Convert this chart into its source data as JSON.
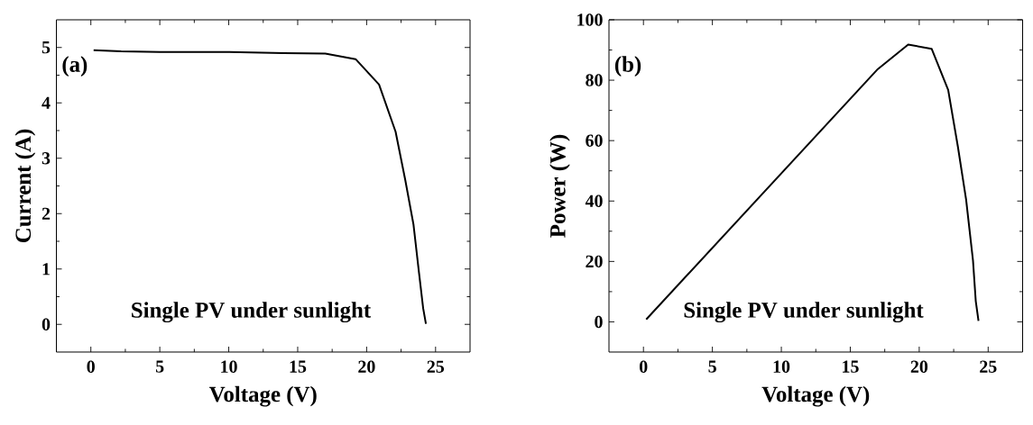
{
  "chart_data": [
    {
      "type": "line",
      "xlabel": "Voltage (V)",
      "ylabel": "Current (A)",
      "annotations": [
        "(a)",
        "Single PV under sunlight"
      ],
      "xlim": [
        -2.5,
        27.5
      ],
      "ylim": [
        -0.5,
        5.5
      ],
      "xticks": [
        0,
        5,
        10,
        15,
        20,
        25
      ],
      "yticks": [
        0,
        1,
        2,
        3,
        4,
        5
      ],
      "grid": false,
      "marker": "none",
      "line_style": "solid",
      "series": [
        {
          "color": "#000000",
          "x": [
            0.2,
            2.2,
            5,
            10,
            14,
            17.0,
            19.2,
            20.9,
            22.1,
            22.8,
            23.4,
            23.8,
            24.1,
            24.3
          ],
          "values": [
            4.95,
            4.93,
            4.92,
            4.92,
            4.9,
            4.89,
            4.79,
            4.33,
            3.48,
            2.61,
            1.8,
            0.93,
            0.29,
            0.01
          ]
        }
      ]
    },
    {
      "type": "line",
      "xlabel": "Voltage (V)",
      "ylabel": "Power (W)",
      "annotations": [
        "(b)",
        "Single PV under sunlight"
      ],
      "xlim": [
        -2.5,
        27.5
      ],
      "ylim": [
        -10,
        100
      ],
      "xticks": [
        0,
        5,
        10,
        15,
        20,
        25
      ],
      "yticks": [
        0,
        20,
        40,
        60,
        80,
        100
      ],
      "grid": false,
      "marker": "none",
      "line_style": "solid",
      "series": [
        {
          "color": "#000000",
          "x": [
            0.2,
            17.0,
            19.2,
            20.9,
            22.1,
            22.8,
            23.4,
            23.9,
            24.1,
            24.3
          ],
          "values": [
            0.8,
            83.7,
            91.8,
            90.4,
            76.8,
            58.1,
            40.5,
            20.3,
            6.9,
            0.3
          ]
        }
      ]
    }
  ]
}
